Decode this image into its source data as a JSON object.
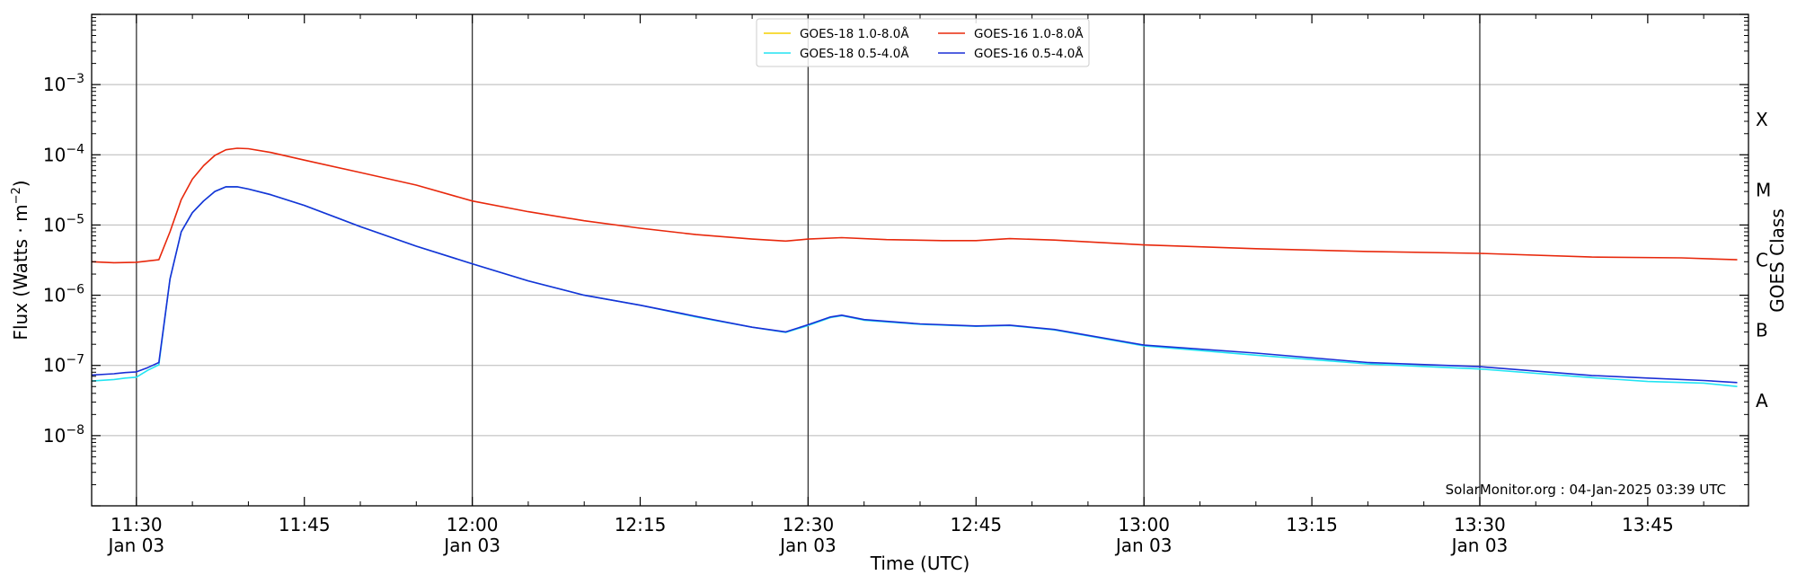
{
  "chart_data": {
    "type": "line",
    "y_scale": "log",
    "ylim": [
      1e-09,
      0.01
    ],
    "y_ticks": [
      {
        "value": 1e-08,
        "mantissa": "10",
        "exponent": "−8"
      },
      {
        "value": 1e-07,
        "mantissa": "10",
        "exponent": "−7"
      },
      {
        "value": 1e-06,
        "mantissa": "10",
        "exponent": "−6"
      },
      {
        "value": 1e-05,
        "mantissa": "10",
        "exponent": "−5"
      },
      {
        "value": 0.0001,
        "mantissa": "10",
        "exponent": "−4"
      },
      {
        "value": 0.001,
        "mantissa": "10",
        "exponent": "−3"
      }
    ],
    "xlim": [
      "11:26",
      "13:54"
    ],
    "x_ticks": [
      {
        "time": "11:30",
        "label": "11:30",
        "date": "Jan 03",
        "major": true
      },
      {
        "time": "11:45",
        "label": "11:45",
        "date": "",
        "major": false
      },
      {
        "time": "12:00",
        "label": "12:00",
        "date": "Jan 03",
        "major": true
      },
      {
        "time": "12:15",
        "label": "12:15",
        "date": "",
        "major": false
      },
      {
        "time": "12:30",
        "label": "12:30",
        "date": "Jan 03",
        "major": true
      },
      {
        "time": "12:45",
        "label": "12:45",
        "date": "",
        "major": false
      },
      {
        "time": "13:00",
        "label": "13:00",
        "date": "Jan 03",
        "major": true
      },
      {
        "time": "13:15",
        "label": "13:15",
        "date": "",
        "major": false
      },
      {
        "time": "13:30",
        "label": "13:30",
        "date": "Jan 03",
        "major": true
      },
      {
        "time": "13:45",
        "label": "13:45",
        "date": "",
        "major": false
      }
    ],
    "xlabel": "Time (UTC)",
    "ylabel_main": "Flux (Watts · m",
    "ylabel_exp": "−2",
    "ylabel_end": ")",
    "y2label": "GOES Class",
    "class_labels": [
      {
        "label": "X",
        "value": 0.000316
      },
      {
        "label": "M",
        "value": 3.16e-05
      },
      {
        "label": "C",
        "value": 3.16e-06
      },
      {
        "label": "B",
        "value": 3.16e-07
      },
      {
        "label": "A",
        "value": 3.16e-08
      }
    ],
    "grid": "horizontal at decades",
    "legend_position": "top-center",
    "legend_order": [
      0,
      2,
      1,
      3
    ],
    "series": [
      {
        "name": "GOES-18 1.0-8.0Å",
        "color": "#f5d000",
        "points": []
      },
      {
        "name": "GOES-16 1.0-8.0Å",
        "color": "#e8280c",
        "points": [
          [
            "11:26",
            3e-06
          ],
          [
            "11:28",
            2.9e-06
          ],
          [
            "11:30",
            2.95e-06
          ],
          [
            "11:32",
            3.2e-06
          ],
          [
            "11:33",
            8e-06
          ],
          [
            "11:34",
            2.3e-05
          ],
          [
            "11:35",
            4.5e-05
          ],
          [
            "11:36",
            7e-05
          ],
          [
            "11:37",
            9.8e-05
          ],
          [
            "11:38",
            0.000118
          ],
          [
            "11:39",
            0.000124
          ],
          [
            "11:40",
            0.000122
          ],
          [
            "11:42",
            0.000108
          ],
          [
            "11:45",
            8.4e-05
          ],
          [
            "11:50",
            5.6e-05
          ],
          [
            "11:55",
            3.7e-05
          ],
          [
            "12:00",
            2.2e-05
          ],
          [
            "12:05",
            1.55e-05
          ],
          [
            "12:10",
            1.15e-05
          ],
          [
            "12:15",
            9e-06
          ],
          [
            "12:20",
            7.3e-06
          ],
          [
            "12:25",
            6.3e-06
          ],
          [
            "12:28",
            5.9e-06
          ],
          [
            "12:30",
            6.3e-06
          ],
          [
            "12:33",
            6.6e-06
          ],
          [
            "12:37",
            6.2e-06
          ],
          [
            "12:42",
            6e-06
          ],
          [
            "12:45",
            6e-06
          ],
          [
            "12:48",
            6.4e-06
          ],
          [
            "12:52",
            6.1e-06
          ],
          [
            "13:00",
            5.2e-06
          ],
          [
            "13:10",
            4.6e-06
          ],
          [
            "13:20",
            4.2e-06
          ],
          [
            "13:30",
            3.95e-06
          ],
          [
            "13:40",
            3.5e-06
          ],
          [
            "13:48",
            3.4e-06
          ],
          [
            "13:53",
            3.2e-06
          ]
        ]
      },
      {
        "name": "GOES-18 0.5-4.0Å",
        "color": "#22e4f2",
        "points": [
          [
            "11:26",
            6e-08
          ],
          [
            "11:28",
            6.3e-08
          ],
          [
            "11:29",
            6.6e-08
          ],
          [
            "11:30",
            6.8e-08
          ],
          [
            "11:31",
            8.5e-08
          ],
          [
            "11:32",
            1.02e-07
          ],
          [
            "11:33",
            1.7e-06
          ],
          [
            "11:34",
            8e-06
          ],
          [
            "11:35",
            1.5e-05
          ],
          [
            "11:36",
            2.2e-05
          ],
          [
            "11:37",
            3e-05
          ],
          [
            "11:38",
            3.5e-05
          ],
          [
            "11:39",
            3.5e-05
          ],
          [
            "11:40",
            3.25e-05
          ],
          [
            "11:42",
            2.7e-05
          ],
          [
            "11:45",
            1.9e-05
          ],
          [
            "11:50",
            9.5e-06
          ],
          [
            "11:55",
            5e-06
          ],
          [
            "12:00",
            2.8e-06
          ],
          [
            "12:05",
            1.6e-06
          ],
          [
            "12:10",
            1e-06
          ],
          [
            "12:15",
            7.2e-07
          ],
          [
            "12:20",
            4.9e-07
          ],
          [
            "12:25",
            3.5e-07
          ],
          [
            "12:28",
            2.95e-07
          ],
          [
            "12:30",
            3.7e-07
          ],
          [
            "12:32",
            4.8e-07
          ],
          [
            "12:33",
            5.1e-07
          ],
          [
            "12:35",
            4.4e-07
          ],
          [
            "12:40",
            3.85e-07
          ],
          [
            "12:45",
            3.6e-07
          ],
          [
            "12:48",
            3.7e-07
          ],
          [
            "12:52",
            3.2e-07
          ],
          [
            "13:00",
            1.9e-07
          ],
          [
            "13:10",
            1.4e-07
          ],
          [
            "13:20",
            1.05e-07
          ],
          [
            "13:30",
            8.9e-08
          ],
          [
            "13:40",
            6.7e-08
          ],
          [
            "13:45",
            5.9e-08
          ],
          [
            "13:50",
            5.6e-08
          ],
          [
            "13:53",
            5e-08
          ]
        ]
      },
      {
        "name": "GOES-16 0.5-4.0Å",
        "color": "#1a2fd6",
        "points": [
          [
            "11:26",
            7.3e-08
          ],
          [
            "11:28",
            7.6e-08
          ],
          [
            "11:29",
            7.9e-08
          ],
          [
            "11:30",
            8.1e-08
          ],
          [
            "11:31",
            9.3e-08
          ],
          [
            "11:32",
            1.1e-07
          ],
          [
            "11:33",
            1.7e-06
          ],
          [
            "11:34",
            8e-06
          ],
          [
            "11:35",
            1.5e-05
          ],
          [
            "11:36",
            2.2e-05
          ],
          [
            "11:37",
            3e-05
          ],
          [
            "11:38",
            3.5e-05
          ],
          [
            "11:39",
            3.5e-05
          ],
          [
            "11:40",
            3.25e-05
          ],
          [
            "11:42",
            2.7e-05
          ],
          [
            "11:45",
            1.9e-05
          ],
          [
            "11:50",
            9.5e-06
          ],
          [
            "11:55",
            5e-06
          ],
          [
            "12:00",
            2.8e-06
          ],
          [
            "12:05",
            1.6e-06
          ],
          [
            "12:10",
            1e-06
          ],
          [
            "12:15",
            7.2e-07
          ],
          [
            "12:20",
            5e-07
          ],
          [
            "12:25",
            3.5e-07
          ],
          [
            "12:28",
            3e-07
          ],
          [
            "12:30",
            3.8e-07
          ],
          [
            "12:32",
            4.9e-07
          ],
          [
            "12:33",
            5.2e-07
          ],
          [
            "12:35",
            4.5e-07
          ],
          [
            "12:40",
            3.9e-07
          ],
          [
            "12:45",
            3.65e-07
          ],
          [
            "12:48",
            3.75e-07
          ],
          [
            "12:52",
            3.25e-07
          ],
          [
            "13:00",
            1.95e-07
          ],
          [
            "13:10",
            1.5e-07
          ],
          [
            "13:20",
            1.1e-07
          ],
          [
            "13:30",
            9.6e-08
          ],
          [
            "13:40",
            7.2e-08
          ],
          [
            "13:45",
            6.6e-08
          ],
          [
            "13:50",
            6.1e-08
          ],
          [
            "13:53",
            5.7e-08
          ]
        ]
      }
    ],
    "credit": "SolarMonitor.org : 04-Jan-2025 03:39 UTC"
  }
}
